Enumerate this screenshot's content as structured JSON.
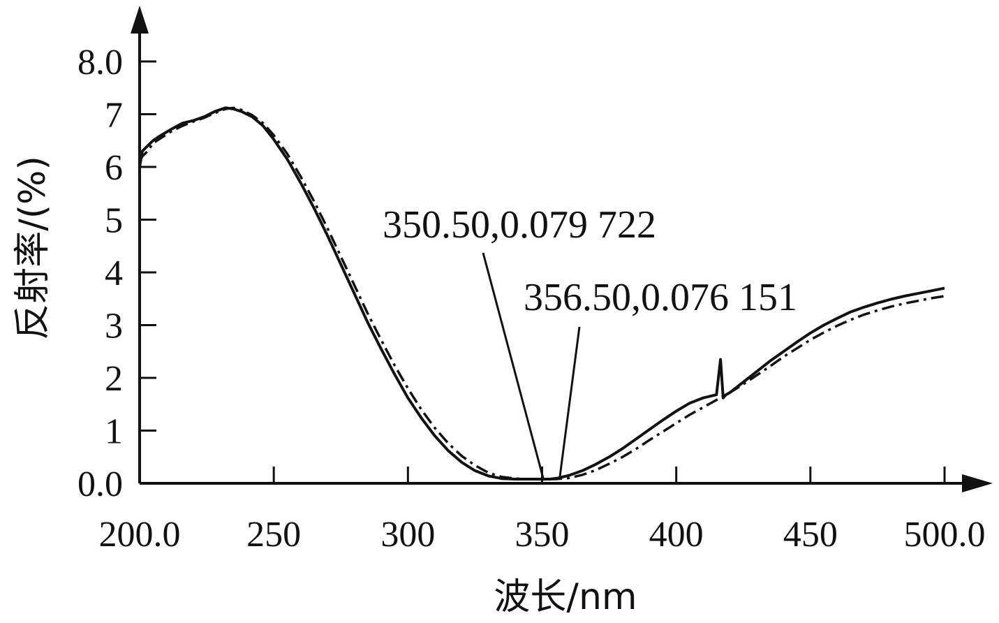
{
  "chart_data": {
    "type": "line",
    "xlabel": "波长/nm",
    "ylabel": "反射率/(%)",
    "xlim": [
      200,
      500
    ],
    "ylim": [
      0,
      8
    ],
    "x_ticks": [
      {
        "value": 200,
        "label": "200.0"
      },
      {
        "value": 250,
        "label": "250"
      },
      {
        "value": 300,
        "label": "300"
      },
      {
        "value": 350,
        "label": "350"
      },
      {
        "value": 400,
        "label": "400"
      },
      {
        "value": 450,
        "label": "450"
      },
      {
        "value": 500,
        "label": "500.0"
      }
    ],
    "y_ticks": [
      {
        "value": 0,
        "label": "0.0"
      },
      {
        "value": 1,
        "label": "1"
      },
      {
        "value": 2,
        "label": "2"
      },
      {
        "value": 3,
        "label": "3"
      },
      {
        "value": 4,
        "label": "4"
      },
      {
        "value": 5,
        "label": "5"
      },
      {
        "value": 6,
        "label": "6"
      },
      {
        "value": 7,
        "label": "7"
      },
      {
        "value": 8,
        "label": "8.0"
      }
    ],
    "grid": false,
    "series": [
      {
        "style": "solid",
        "x": [
          200,
          201,
          203,
          205,
          208,
          212,
          216,
          220,
          224,
          228,
          232,
          235,
          238,
          242,
          246,
          250,
          255,
          260,
          265,
          270,
          275,
          280,
          285,
          290,
          295,
          300,
          305,
          310,
          315,
          320,
          325,
          330,
          335,
          340,
          345,
          350,
          353,
          356,
          360,
          365,
          370,
          375,
          380,
          385,
          390,
          395,
          400,
          405,
          410,
          415,
          416.5,
          417.5,
          418.5,
          420,
          425,
          430,
          435,
          440,
          445,
          450,
          455,
          460,
          465,
          470,
          475,
          480,
          485,
          490,
          495,
          500
        ],
        "y": [
          6.0,
          6.3,
          6.4,
          6.5,
          6.6,
          6.72,
          6.83,
          6.88,
          6.95,
          7.05,
          7.12,
          7.1,
          7.05,
          6.95,
          6.78,
          6.52,
          6.15,
          5.7,
          5.22,
          4.7,
          4.15,
          3.6,
          3.05,
          2.55,
          2.07,
          1.62,
          1.24,
          0.9,
          0.62,
          0.4,
          0.24,
          0.14,
          0.09,
          0.08,
          0.08,
          0.08,
          0.08,
          0.1,
          0.15,
          0.24,
          0.36,
          0.5,
          0.66,
          0.84,
          1.02,
          1.2,
          1.37,
          1.52,
          1.62,
          1.68,
          2.35,
          1.62,
          1.68,
          1.72,
          1.92,
          2.12,
          2.32,
          2.5,
          2.68,
          2.85,
          3.0,
          3.13,
          3.25,
          3.34,
          3.42,
          3.49,
          3.55,
          3.6,
          3.65,
          3.7
        ]
      },
      {
        "style": "dash-dot",
        "x": [
          200,
          201,
          203,
          205,
          208,
          212,
          216,
          220,
          224,
          228,
          232,
          235,
          238,
          242,
          246,
          250,
          255,
          260,
          265,
          270,
          275,
          280,
          285,
          290,
          295,
          300,
          305,
          310,
          315,
          320,
          325,
          330,
          335,
          340,
          345,
          350,
          355,
          360,
          365,
          370,
          375,
          380,
          385,
          390,
          395,
          400,
          405,
          410,
          415,
          420,
          425,
          430,
          435,
          440,
          445,
          450,
          455,
          460,
          465,
          470,
          475,
          480,
          485,
          490,
          495,
          500
        ],
        "y": [
          6.1,
          6.2,
          6.3,
          6.45,
          6.55,
          6.68,
          6.78,
          6.86,
          6.93,
          7.02,
          7.1,
          7.12,
          7.08,
          6.98,
          6.83,
          6.6,
          6.25,
          5.82,
          5.35,
          4.84,
          4.3,
          3.76,
          3.22,
          2.72,
          2.24,
          1.8,
          1.4,
          1.05,
          0.76,
          0.52,
          0.34,
          0.2,
          0.12,
          0.09,
          0.08,
          0.08,
          0.08,
          0.1,
          0.16,
          0.25,
          0.37,
          0.5,
          0.65,
          0.82,
          0.98,
          1.14,
          1.3,
          1.44,
          1.58,
          1.72,
          1.88,
          2.05,
          2.22,
          2.4,
          2.56,
          2.72,
          2.86,
          2.99,
          3.1,
          3.2,
          3.28,
          3.35,
          3.41,
          3.46,
          3.51,
          3.55
        ]
      }
    ],
    "annotations": [
      {
        "text": "350.50,0.079 722",
        "x": 350.5,
        "y": 0.079722
      },
      {
        "text": "356.50,0.076 151",
        "x": 356.5,
        "y": 0.076151
      }
    ]
  }
}
